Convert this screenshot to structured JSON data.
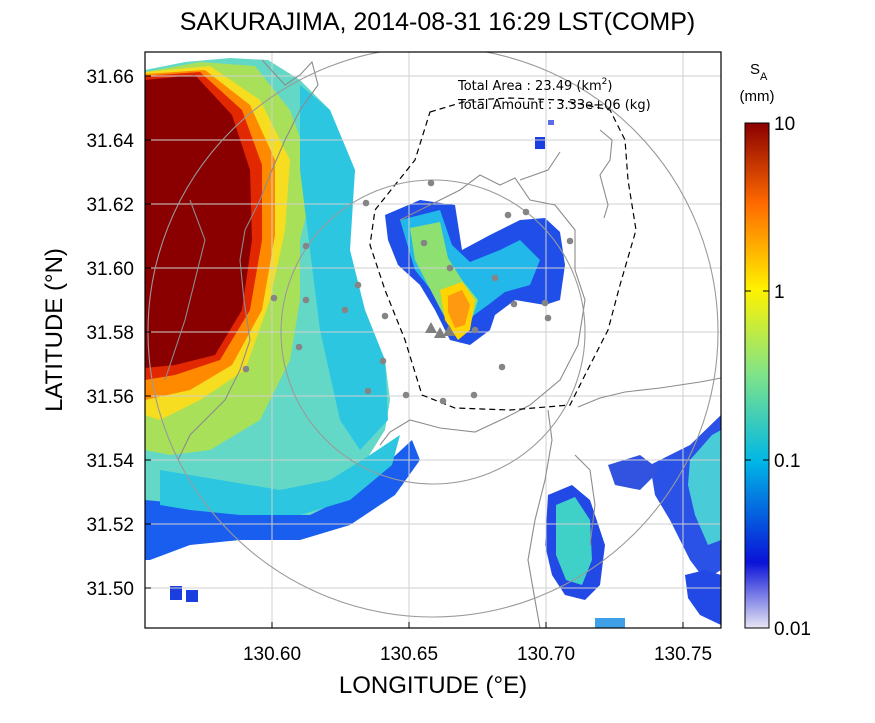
{
  "title": "SAKURAJIMA, 2014-08-31 16:29 LST(COMP)",
  "xlabel": "LONGITUDE (°E)",
  "ylabel": "LATITUDE (°N)",
  "x_ticks": [
    "130.60",
    "130.65",
    "130.70",
    "130.75"
  ],
  "y_ticks": [
    "31.66",
    "31.64",
    "31.62",
    "31.60",
    "31.58",
    "31.56",
    "31.54",
    "31.52",
    "31.50"
  ],
  "annotation": {
    "area_label": "Total Area   : 23.49 (km",
    "area_sup": "2",
    "area_close": ")",
    "amount_label": "Total Amount : 3.33e+06 (kg)"
  },
  "colorbar": {
    "title_s": "S",
    "title_sub": "A",
    "unit": "(mm)",
    "ticks": [
      "10",
      "1",
      "0.1",
      "0.01"
    ],
    "scale": "log",
    "range": [
      0.01,
      10
    ],
    "colors": [
      "#e8e6f4",
      "#0a12d8",
      "#00b7e6",
      "#7ee38a",
      "#fff200",
      "#ff6a00",
      "#8a0000"
    ]
  },
  "chart_data": {
    "type": "heatmap",
    "title": "SAKURAJIMA, 2014-08-31 16:29 LST(COMP)",
    "xlabel": "LONGITUDE (°E)",
    "ylabel": "LATITUDE (°N)",
    "xlim": [
      130.553,
      130.763
    ],
    "ylim": [
      31.488,
      31.667
    ],
    "quantity": "S_A (mm)",
    "color_scale": "log",
    "color_range": [
      0.01,
      10
    ],
    "grid": true,
    "vent_markers": [
      [
        130.661,
        31.58
      ],
      [
        130.664,
        31.578
      ],
      [
        130.667,
        31.579
      ]
    ],
    "station_points": [
      [
        130.659,
        31.626
      ],
      [
        130.637,
        31.619
      ],
      [
        130.676,
        31.615
      ],
      [
        130.689,
        31.617
      ],
      [
        130.695,
        31.601
      ],
      [
        130.709,
        31.603
      ],
      [
        130.679,
        31.609
      ],
      [
        130.654,
        31.6
      ],
      [
        130.664,
        31.596
      ],
      [
        130.681,
        31.593
      ],
      [
        130.709,
        31.582
      ],
      [
        130.618,
        31.587
      ],
      [
        130.602,
        31.59
      ],
      [
        130.63,
        31.584
      ],
      [
        130.641,
        31.581
      ],
      [
        130.671,
        31.583
      ],
      [
        130.686,
        31.586
      ],
      [
        130.611,
        31.573
      ],
      [
        130.64,
        31.568
      ],
      [
        130.633,
        31.562
      ],
      [
        130.646,
        31.557
      ],
      [
        130.658,
        31.559
      ],
      [
        130.676,
        31.56
      ],
      [
        130.689,
        31.566
      ],
      [
        130.594,
        31.566
      ]
    ]
  }
}
